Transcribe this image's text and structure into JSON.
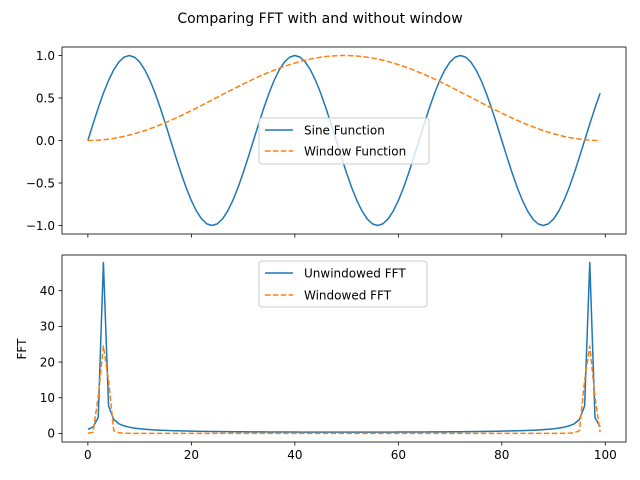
{
  "figure": {
    "title": "Comparing FFT with and without window"
  },
  "chart_data": [
    {
      "type": "line",
      "title": "",
      "xlabel": "",
      "ylabel": "",
      "xlim": [
        -5,
        104
      ],
      "ylim": [
        -1.1,
        1.1
      ],
      "xticks": [
        0,
        20,
        40,
        60,
        80,
        100
      ],
      "xtick_labels_visible": false,
      "yticks": [
        -1.0,
        -0.5,
        0.0,
        0.5,
        1.0
      ],
      "ytick_labels": [
        "−1.0",
        "−0.5",
        "0.0",
        "0.5",
        "1.0"
      ],
      "grid": false,
      "legend_placement": "center",
      "x": "0..99",
      "series": [
        {
          "name": "Sine Function",
          "color": "#1f77b4",
          "style": "solid",
          "formula": "sin(2*pi*x/32)",
          "period": 32,
          "amplitude": 1
        },
        {
          "name": "Window Function",
          "color": "#ff7f0e",
          "style": "dashed",
          "formula": "hann(100)",
          "peak": 1
        }
      ]
    },
    {
      "type": "line",
      "title": "",
      "xlabel": "",
      "ylabel": "FFT",
      "xlim": [
        -5,
        104
      ],
      "ylim": [
        -2.4,
        50
      ],
      "xticks": [
        0,
        20,
        40,
        60,
        80,
        100
      ],
      "xtick_labels": [
        "0",
        "20",
        "40",
        "60",
        "80",
        "100"
      ],
      "yticks": [
        0,
        10,
        20,
        30,
        40
      ],
      "ytick_labels": [
        "0",
        "10",
        "20",
        "30",
        "40"
      ],
      "grid": false,
      "legend_placement": "upper center",
      "x": "0..99",
      "series": [
        {
          "name": "Unwindowed FFT",
          "color": "#1f77b4",
          "style": "solid",
          "peaks": [
            {
              "x": 3,
              "y": 47.7
            },
            {
              "x": 97,
              "y": 47.7
            }
          ]
        },
        {
          "name": "Windowed FFT",
          "color": "#ff7f0e",
          "style": "dashed",
          "peaks": [
            {
              "x": 3,
              "y": 24.7
            },
            {
              "x": 97,
              "y": 24.7
            }
          ]
        }
      ]
    }
  ]
}
